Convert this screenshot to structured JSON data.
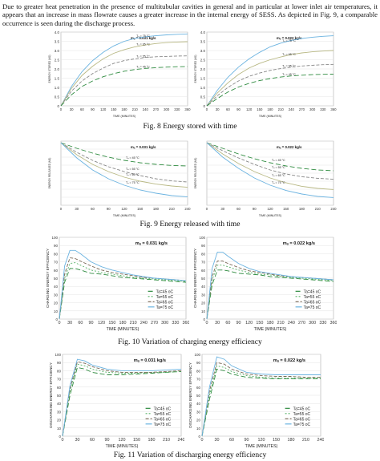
{
  "paragraph": "Due to greater heat penetration in the presence of multitubular cavities in general and in particular at lower inlet air temperatures, it appears that an increase in mass flowrate causes a greater increase in the internal energy of SESS. As depicted in Fig. 9, a comparable occurrence is seen during the discharge process.",
  "captions": {
    "fig8": "Fig. 8 Energy stored with time",
    "fig9": "Fig. 9 Energy released with time",
    "fig10": "Fig. 10 Variation of charging energy efficiency",
    "fig11": "Fig. 11 Variation of discharging energy efficiency"
  },
  "colors": {
    "ta45": "#2e8b3f",
    "ta55": "#58b368",
    "ta65": "#7a6a58",
    "ta75": "#6bb3e0"
  },
  "chart_data": [
    {
      "id": "fig8a",
      "type": "line",
      "annotation": "mₐ = 0.031 kg/s",
      "xlabel": "TIME (MINUTES)",
      "ylabel": "ENERGY STORED (MJ)",
      "x": [
        0,
        30,
        60,
        90,
        120,
        150,
        180,
        210,
        240,
        270,
        300,
        330,
        360
      ],
      "xticks": [
        0,
        30,
        60,
        90,
        120,
        150,
        180,
        210,
        240,
        270,
        300,
        330,
        360
      ],
      "ylim": [
        0,
        4
      ],
      "yticks": [
        "0",
        "0.5",
        "1.0",
        "1.5",
        "2.0",
        "2.5",
        "3.0",
        "3.5",
        "4.0"
      ],
      "series": [
        {
          "name": "Tₐ = 75 °C",
          "color": "#6bb3e0",
          "dash": "",
          "values": [
            0,
            1.05,
            1.85,
            2.45,
            2.9,
            3.25,
            3.5,
            3.65,
            3.75,
            3.8,
            3.85,
            3.88,
            3.9
          ]
        },
        {
          "name": "Tₐ = 65 °C",
          "color": "#b8b884",
          "dash": "",
          "values": [
            0,
            0.95,
            1.65,
            2.15,
            2.55,
            2.85,
            3.05,
            3.2,
            3.3,
            3.38,
            3.43,
            3.46,
            3.48
          ]
        },
        {
          "name": "Tₐ = 55 °C",
          "color": "#888888",
          "dash": "4 2",
          "values": [
            0,
            0.8,
            1.35,
            1.75,
            2.05,
            2.3,
            2.45,
            2.55,
            2.62,
            2.66,
            2.68,
            2.7,
            2.71
          ]
        },
        {
          "name": "Tₐ = 45 °C",
          "color": "#2e8b3f",
          "dash": "6 3",
          "values": [
            0,
            0.6,
            1.05,
            1.35,
            1.58,
            1.75,
            1.88,
            1.97,
            2.03,
            2.07,
            2.1,
            2.12,
            2.13
          ]
        }
      ]
    },
    {
      "id": "fig8b",
      "type": "line",
      "annotation": "mₐ = 0.022 kg/s",
      "xlabel": "TIME (MINUTES)",
      "ylabel": "ENERGY STORED (MJ)",
      "x": [
        0,
        30,
        60,
        90,
        120,
        150,
        180,
        210,
        240,
        270,
        300,
        330,
        360
      ],
      "xticks": [
        0,
        30,
        60,
        90,
        120,
        150,
        180,
        210,
        240,
        270,
        300,
        330,
        360
      ],
      "ylim": [
        0,
        4
      ],
      "yticks": [
        "0",
        "0.5",
        "1.0",
        "1.5",
        "2.0",
        "2.5",
        "3.0",
        "3.5",
        "4.0"
      ],
      "series": [
        {
          "name": "Tₐ = 75 °C",
          "color": "#6bb3e0",
          "dash": "",
          "values": [
            0,
            0.85,
            1.55,
            2.1,
            2.55,
            2.9,
            3.2,
            3.4,
            3.55,
            3.65,
            3.72,
            3.77,
            3.8
          ]
        },
        {
          "name": "Tₐ = 65 °C",
          "color": "#b8b884",
          "dash": "",
          "values": [
            0,
            0.7,
            1.25,
            1.7,
            2.05,
            2.3,
            2.5,
            2.65,
            2.78,
            2.87,
            2.93,
            2.97,
            3.0
          ]
        },
        {
          "name": "Tₐ = 55 °C",
          "color": "#888888",
          "dash": "4 2",
          "values": [
            0,
            0.55,
            1.0,
            1.35,
            1.6,
            1.78,
            1.92,
            2.02,
            2.1,
            2.16,
            2.2,
            2.23,
            2.25
          ]
        },
        {
          "name": "Tₐ = 45 °C",
          "color": "#2e8b3f",
          "dash": "6 3",
          "values": [
            0,
            0.4,
            0.75,
            1.02,
            1.22,
            1.37,
            1.48,
            1.56,
            1.62,
            1.66,
            1.69,
            1.71,
            1.72
          ]
        }
      ]
    },
    {
      "id": "fig9a",
      "type": "line",
      "annotation": "mₐ = 0.031 kg/s",
      "xlabel": "TIME (MINUTES)",
      "ylabel": "ENERGY RELEASED (MJ)",
      "x": [
        0,
        30,
        60,
        90,
        120,
        150,
        180,
        210,
        240
      ],
      "xticks": [
        0,
        30,
        60,
        90,
        120,
        150,
        180,
        210,
        240
      ],
      "ylim": [
        0,
        4
      ],
      "yticks": [
        "",
        "",
        "",
        "",
        "",
        "",
        "",
        "",
        ""
      ],
      "series": [
        {
          "name": "Tₐ = 45 °C",
          "color": "#2e8b3f",
          "dash": "6 3",
          "values": [
            3.9,
            3.55,
            3.25,
            3.0,
            2.8,
            2.65,
            2.55,
            2.48,
            2.45
          ]
        },
        {
          "name": "Tₐ = 55 °C",
          "color": "#888888",
          "dash": "4 2",
          "values": [
            3.9,
            3.3,
            2.8,
            2.4,
            2.1,
            1.85,
            1.65,
            1.52,
            1.45
          ]
        },
        {
          "name": "Tₐ = 65 °C",
          "color": "#b8b884",
          "dash": "",
          "values": [
            3.9,
            3.15,
            2.55,
            2.1,
            1.75,
            1.5,
            1.32,
            1.2,
            1.12
          ]
        },
        {
          "name": "Tₐ = 75 °C",
          "color": "#6bb3e0",
          "dash": "",
          "values": [
            3.9,
            2.95,
            2.2,
            1.65,
            1.25,
            0.95,
            0.75,
            0.6,
            0.52
          ]
        }
      ]
    },
    {
      "id": "fig9b",
      "type": "line",
      "annotation": "mₐ = 0.022 kg/s",
      "xlabel": "TIME (MINUTES)",
      "ylabel": "ENERGY RELEASED (MJ)",
      "x": [
        0,
        30,
        60,
        90,
        120,
        150,
        180,
        210,
        240
      ],
      "xticks": [
        0,
        30,
        60,
        90,
        120,
        150,
        180,
        210,
        240
      ],
      "ylim": [
        0,
        4
      ],
      "yticks": [
        "",
        "",
        "",
        "",
        "",
        "",
        "",
        "",
        ""
      ],
      "series": [
        {
          "name": "Tₐ = 45 °C",
          "color": "#2e8b3f",
          "dash": "6 3",
          "values": [
            3.9,
            3.55,
            3.2,
            2.9,
            2.65,
            2.45,
            2.3,
            2.2,
            2.15
          ]
        },
        {
          "name": "Tₐ = 55 °C",
          "color": "#888888",
          "dash": "4 2",
          "values": [
            3.9,
            3.4,
            2.95,
            2.55,
            2.2,
            1.95,
            1.78,
            1.68,
            1.62
          ]
        },
        {
          "name": "Tₐ = 65 °C",
          "color": "#b8b884",
          "dash": "",
          "values": [
            3.9,
            3.2,
            2.6,
            2.1,
            1.7,
            1.4,
            1.18,
            1.05,
            0.98
          ]
        },
        {
          "name": "Tₐ = 75 °C",
          "color": "#6bb3e0",
          "dash": "",
          "values": [
            3.9,
            3.0,
            2.3,
            1.7,
            1.25,
            0.92,
            0.7,
            0.55,
            0.48
          ]
        }
      ]
    },
    {
      "id": "fig10a",
      "type": "line",
      "annotation": "mₐ = 0.031 kg/s",
      "xlabel": "TIME (MINUTES)",
      "ylabel": "CHARGING ENERGY EFFICIENCY",
      "x": [
        0,
        15,
        30,
        45,
        60,
        90,
        120,
        150,
        180,
        210,
        240,
        270,
        300,
        330,
        360
      ],
      "xticks": [
        0,
        30,
        60,
        90,
        120,
        150,
        180,
        210,
        240,
        270,
        300,
        330,
        360
      ],
      "ylim": [
        0,
        100
      ],
      "yticks": [
        "0",
        "10",
        "20",
        "30",
        "40",
        "50",
        "60",
        "70",
        "80",
        "90",
        "100"
      ],
      "legend_position": "bottom-right",
      "series": [
        {
          "name": "Ta=45 oC",
          "color": "#2e8b3f",
          "dash": "6 3",
          "values": [
            0,
            45,
            62,
            62,
            60,
            56,
            55,
            53,
            51,
            50,
            49,
            48,
            47,
            46,
            45
          ]
        },
        {
          "name": "Ta=55 oC",
          "color": "#58b368",
          "dash": "2 2",
          "values": [
            0,
            50,
            68,
            69,
            66,
            60,
            57,
            55,
            53,
            51,
            50,
            49,
            48,
            47,
            46
          ]
        },
        {
          "name": "Ta=65 oC",
          "color": "#7a6a58",
          "dash": "4 2",
          "values": [
            0,
            55,
            75,
            74,
            71,
            65,
            60,
            57,
            55,
            53,
            51,
            50,
            49,
            48,
            47
          ]
        },
        {
          "name": "Ta=75 oC",
          "color": "#6bb3e0",
          "dash": "",
          "values": [
            0,
            65,
            84,
            84,
            80,
            70,
            64,
            60,
            57,
            54,
            52,
            50,
            49,
            48,
            47
          ]
        }
      ]
    },
    {
      "id": "fig10b",
      "type": "line",
      "annotation": "mₐ = 0.022 kg/s",
      "xlabel": "TIME (MINUTES)",
      "ylabel": "CHARGING ENERGY EFFICIENCY",
      "x": [
        0,
        15,
        30,
        45,
        60,
        90,
        120,
        150,
        180,
        210,
        240,
        270,
        300,
        330,
        360
      ],
      "xticks": [
        0,
        30,
        60,
        90,
        120,
        150,
        180,
        210,
        240,
        270,
        300,
        330,
        360
      ],
      "ylim": [
        0,
        100
      ],
      "yticks": [
        "0",
        "10",
        "20",
        "30",
        "40",
        "50",
        "60",
        "70",
        "80",
        "90",
        "100"
      ],
      "legend_position": "bottom-right",
      "series": [
        {
          "name": "Ta=45 oC",
          "color": "#2e8b3f",
          "dash": "6 3",
          "values": [
            0,
            42,
            60,
            60,
            59,
            56,
            55,
            54,
            52,
            51,
            50,
            49,
            48,
            47,
            46
          ]
        },
        {
          "name": "Ta=55 oC",
          "color": "#58b368",
          "dash": "2 2",
          "values": [
            0,
            48,
            66,
            66,
            64,
            60,
            57,
            55,
            54,
            52,
            51,
            50,
            49,
            48,
            47
          ]
        },
        {
          "name": "Ta=65 oC",
          "color": "#7a6a58",
          "dash": "4 2",
          "values": [
            0,
            52,
            71,
            71,
            68,
            63,
            59,
            57,
            55,
            53,
            52,
            51,
            50,
            49,
            48
          ]
        },
        {
          "name": "Ta=75 oC",
          "color": "#6bb3e0",
          "dash": "",
          "values": [
            0,
            62,
            82,
            82,
            77,
            68,
            62,
            58,
            56,
            54,
            52,
            51,
            50,
            49,
            48
          ]
        }
      ]
    },
    {
      "id": "fig11a",
      "type": "line",
      "annotation": "mₐ = 0.031 kg/s",
      "xlabel": "TIME (MINUTES)",
      "ylabel": "DISCHARGING ENERGY EFFICIENCY",
      "x": [
        0,
        15,
        30,
        45,
        60,
        90,
        120,
        150,
        180,
        210,
        240
      ],
      "xticks": [
        0,
        30,
        60,
        90,
        120,
        150,
        180,
        210,
        240
      ],
      "ylim": [
        0,
        100
      ],
      "yticks": [
        "0",
        "10",
        "20",
        "30",
        "40",
        "50",
        "60",
        "70",
        "80",
        "90",
        "100"
      ],
      "legend_position": "bottom-right",
      "series": [
        {
          "name": "Ta=45 oC",
          "color": "#2e8b3f",
          "dash": "6 3",
          "values": [
            0,
            50,
            84,
            82,
            78,
            75,
            75,
            76,
            77,
            78,
            79
          ]
        },
        {
          "name": "Ta=55 oC",
          "color": "#58b368",
          "dash": "2 2",
          "values": [
            0,
            55,
            88,
            86,
            82,
            78,
            77,
            77,
            78,
            78,
            79
          ]
        },
        {
          "name": "Ta=65 oC",
          "color": "#7a6a58",
          "dash": "4 2",
          "values": [
            0,
            58,
            91,
            89,
            85,
            80,
            78,
            78,
            78,
            79,
            80
          ]
        },
        {
          "name": "Ta=75 oC",
          "color": "#6bb3e0",
          "dash": "",
          "values": [
            0,
            62,
            94,
            92,
            87,
            82,
            80,
            80,
            80,
            81,
            82
          ]
        }
      ]
    },
    {
      "id": "fig11b",
      "type": "line",
      "annotation": "mₐ = 0.022 kg/s",
      "xlabel": "TIME (MINUTES)",
      "ylabel": "DISCHARGING ENERGY EFFICIENCY",
      "x": [
        0,
        15,
        30,
        45,
        60,
        90,
        120,
        150,
        180,
        210,
        240
      ],
      "xticks": [
        0,
        30,
        60,
        90,
        120,
        150,
        180,
        210,
        240
      ],
      "ylim": [
        0,
        100
      ],
      "yticks": [
        "0",
        "10",
        "20",
        "30",
        "40",
        "50",
        "60",
        "70",
        "80",
        "90",
        "100"
      ],
      "legend_position": "bottom-right",
      "series": [
        {
          "name": "Ta=45 oC",
          "color": "#2e8b3f",
          "dash": "6 3",
          "values": [
            0,
            45,
            82,
            80,
            76,
            72,
            71,
            70,
            70,
            70,
            70
          ]
        },
        {
          "name": "Ta=55 oC",
          "color": "#58b368",
          "dash": "2 2",
          "values": [
            0,
            50,
            86,
            84,
            79,
            74,
            72,
            71,
            71,
            71,
            71
          ]
        },
        {
          "name": "Ta=65 oC",
          "color": "#7a6a58",
          "dash": "4 2",
          "values": [
            0,
            55,
            90,
            88,
            82,
            76,
            74,
            73,
            73,
            72,
            72
          ]
        },
        {
          "name": "Ta=75 oC",
          "color": "#6bb3e0",
          "dash": "",
          "values": [
            0,
            60,
            97,
            94,
            86,
            78,
            76,
            75,
            75,
            75,
            75
          ]
        }
      ]
    }
  ]
}
